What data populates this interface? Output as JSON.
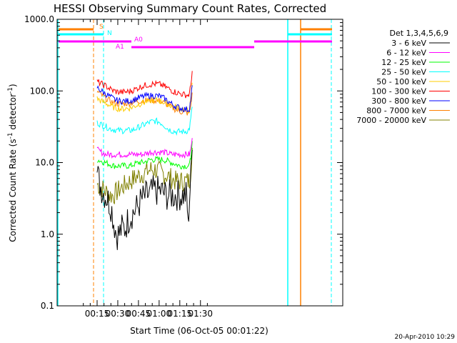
{
  "chart_data": {
    "type": "line",
    "title": "HESSI Observing Summary Count Rates, Corrected",
    "xlabel": "Start Time (06-Oct-05 00:01:22)",
    "ylabel_parts": [
      "Corrected Count Rate (s",
      "-1",
      " detector",
      "-1",
      ")"
    ],
    "yscale": "log",
    "ylim": [
      0.1,
      1000
    ],
    "xlim_minutes": [
      0,
      31
    ],
    "x_ticks": [
      {
        "label": "00:15",
        "minute": 15
      },
      {
        "label": "00:30",
        "minute": 30
      },
      {
        "label": "00:45",
        "minute": 45
      },
      {
        "label": "01:00",
        "minute": 60
      },
      {
        "label": "01:15",
        "minute": 75
      },
      {
        "label": "01:30",
        "minute": 90
      }
    ],
    "y_ticks": [
      {
        "label": "1000.0",
        "value": 1000
      },
      {
        "label": "100.0",
        "value": 100
      },
      {
        "label": "10.0",
        "value": 10
      },
      {
        "label": "1.0",
        "value": 1
      },
      {
        "label": "0.1",
        "value": 0.1
      }
    ],
    "legend_title": "Det 1,3,4,5,6,9",
    "legend_placement": "right",
    "series": [
      {
        "name": "3 - 6 keV",
        "color": "#000000",
        "x": [
          15,
          17,
          19,
          21,
          23,
          25,
          27,
          29,
          31,
          33,
          35,
          37,
          39,
          41,
          43,
          45,
          47,
          49,
          51,
          53,
          55,
          57,
          59,
          61,
          63,
          65,
          67,
          69,
          71,
          73,
          75,
          77,
          79,
          80,
          81,
          82,
          83,
          84
        ],
        "y": [
          7,
          5,
          4,
          3.5,
          3,
          2.5,
          1.5,
          1,
          1,
          1.2,
          1.2,
          1.5,
          1.8,
          2,
          2.2,
          2.5,
          3,
          3.2,
          3.5,
          3.5,
          4,
          4,
          4,
          4,
          3.8,
          3.5,
          3.5,
          3.5,
          3.5,
          3.5,
          3.5,
          3.5,
          3.5,
          3.5,
          1.2,
          3,
          6,
          15
        ]
      },
      {
        "name": "6 - 12 keV",
        "color": "#ff00ff",
        "x": [
          15,
          18,
          21,
          24,
          27,
          30,
          33,
          36,
          39,
          42,
          45,
          48,
          51,
          54,
          57,
          60,
          63,
          66,
          69,
          72,
          75,
          78,
          81,
          82,
          83,
          84
        ],
        "y": [
          15,
          14,
          13,
          13,
          13,
          13,
          13,
          13,
          13,
          13,
          13,
          13,
          13.5,
          14,
          14,
          14,
          14,
          13.5,
          13,
          13,
          13,
          13,
          13,
          13,
          15,
          22
        ]
      },
      {
        "name": "12 - 25 keV",
        "color": "#00ff00",
        "x": [
          15,
          18,
          21,
          24,
          27,
          30,
          33,
          36,
          39,
          42,
          45,
          48,
          51,
          54,
          57,
          60,
          63,
          66,
          69,
          72,
          75,
          78,
          81,
          82,
          83,
          84
        ],
        "y": [
          11,
          10.5,
          10,
          9.5,
          9,
          9,
          9,
          9,
          9,
          9.5,
          10,
          10,
          10.5,
          11,
          11,
          11,
          11,
          10.5,
          10,
          9.5,
          9,
          9,
          9,
          9,
          12,
          20
        ]
      },
      {
        "name": "25 - 50 keV",
        "color": "#00ffff",
        "x": [
          15,
          18,
          21,
          24,
          27,
          30,
          33,
          36,
          39,
          42,
          45,
          48,
          51,
          54,
          57,
          60,
          63,
          66,
          69,
          72,
          75,
          78,
          81,
          82,
          83,
          84
        ],
        "y": [
          36,
          34,
          32,
          30,
          29,
          28,
          28,
          28,
          28,
          29,
          31,
          33,
          35,
          37,
          38,
          37,
          34,
          30,
          28,
          27,
          27,
          27,
          28,
          30,
          40,
          60
        ]
      },
      {
        "name": "50 - 100 keV",
        "color": "#ffcc00",
        "x": [
          15,
          18,
          21,
          24,
          27,
          30,
          33,
          36,
          39,
          42,
          45,
          48,
          51,
          54,
          57,
          60,
          63,
          66,
          69,
          72,
          75,
          78,
          81,
          82,
          83,
          84
        ],
        "y": [
          78,
          72,
          68,
          63,
          59,
          57,
          56,
          57,
          58,
          61,
          65,
          68,
          71,
          73,
          74,
          73,
          70,
          66,
          62,
          59,
          57,
          55,
          53,
          55,
          75,
          130
        ]
      },
      {
        "name": "100 - 300 keV",
        "color": "#ff0000",
        "x": [
          15,
          18,
          21,
          24,
          27,
          30,
          33,
          36,
          39,
          42,
          45,
          48,
          51,
          54,
          57,
          60,
          63,
          66,
          69,
          72,
          75,
          78,
          81,
          82,
          83,
          84
        ],
        "y": [
          135,
          126,
          118,
          108,
          100,
          97,
          96,
          97,
          99,
          104,
          111,
          117,
          121,
          124,
          125,
          124,
          118,
          110,
          102,
          96,
          92,
          89,
          87,
          90,
          120,
          190
        ]
      },
      {
        "name": "300 - 800 keV",
        "color": "#0000ff",
        "x": [
          15,
          18,
          21,
          24,
          27,
          30,
          33,
          36,
          39,
          42,
          45,
          48,
          51,
          54,
          57,
          60,
          63,
          66,
          69,
          72,
          75,
          78,
          81,
          82,
          83,
          84
        ],
        "y": [
          112,
          100,
          92,
          84,
          77,
          73,
          72,
          72,
          73,
          76,
          80,
          83,
          85,
          86,
          86,
          85,
          80,
          73,
          66,
          61,
          58,
          56,
          55,
          57,
          75,
          120
        ]
      },
      {
        "name": "800 - 7000 keV",
        "color": "#ff8000",
        "x": [
          15,
          18,
          21,
          24,
          27,
          30,
          33,
          36,
          39,
          42,
          45,
          48,
          51,
          54,
          57,
          60,
          63,
          66,
          69,
          72,
          75,
          78,
          81,
          82,
          83,
          84
        ],
        "y": [
          98,
          88,
          80,
          73,
          68,
          66,
          66,
          67,
          68,
          70,
          72,
          73,
          74,
          74,
          74,
          73,
          69,
          64,
          59,
          55,
          52,
          50,
          49,
          50,
          62,
          95
        ]
      },
      {
        "name": "7000 - 20000 keV",
        "color": "#808000",
        "x": [
          15,
          18,
          21,
          24,
          27,
          30,
          33,
          36,
          39,
          42,
          45,
          48,
          51,
          54,
          57,
          60,
          63,
          66,
          69,
          72,
          75,
          78,
          81,
          82,
          83,
          84
        ],
        "y": [
          5,
          4.5,
          4,
          3.5,
          3.5,
          4,
          4.5,
          5,
          5.5,
          6,
          6.5,
          7,
          7.5,
          8,
          8,
          7.5,
          7,
          6.5,
          6,
          5.5,
          5.5,
          5.5,
          5.5,
          5.5,
          8,
          16
        ]
      }
    ],
    "flags": [
      {
        "label": "S",
        "color": "#ff8000"
      },
      {
        "label": "N",
        "color": "#00ffff"
      },
      {
        "label": "A0",
        "color": "#ff00ff"
      },
      {
        "label": "A1",
        "color": "#ff00ff"
      }
    ],
    "footer_date": "20-Apr-2010 10:29"
  }
}
